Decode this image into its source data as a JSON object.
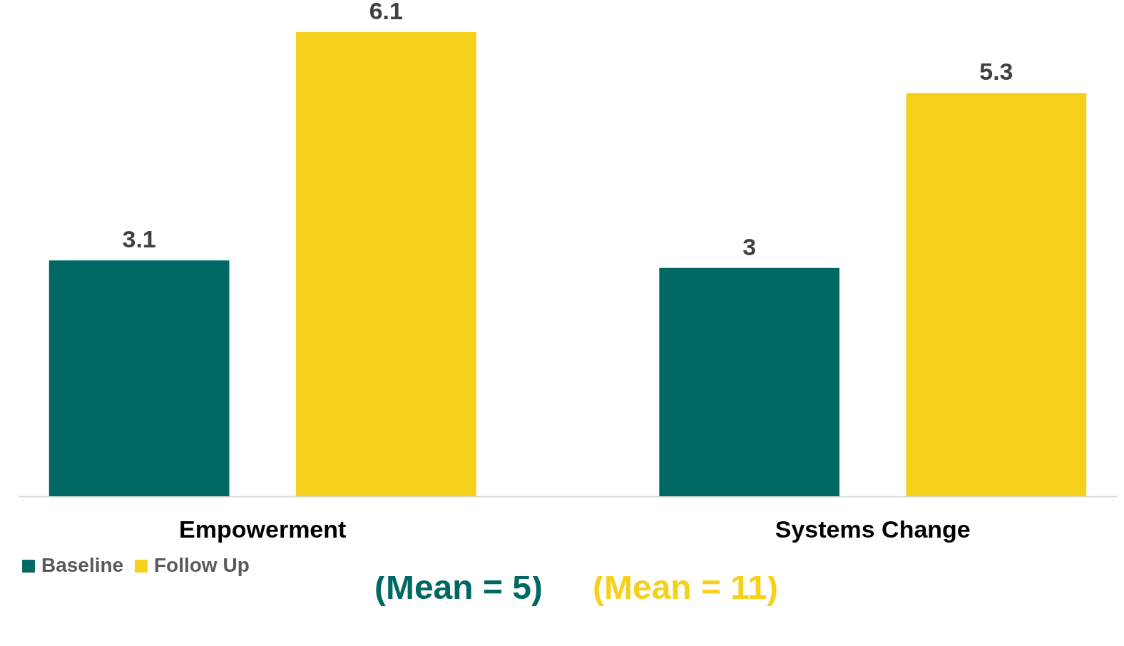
{
  "chart_data": {
    "type": "bar",
    "categories": [
      "Empowerment",
      "Systems Change"
    ],
    "series": [
      {
        "name": "Baseline",
        "color": "#006863",
        "values": [
          3.1,
          3
        ]
      },
      {
        "name": "Follow Up",
        "color": "#f5d11c",
        "values": [
          6.1,
          5.3
        ]
      }
    ],
    "data_labels": true,
    "legend": "bottom",
    "grid": false,
    "annotations": [
      "(Mean = 5)",
      "(Mean = 11)"
    ]
  }
}
